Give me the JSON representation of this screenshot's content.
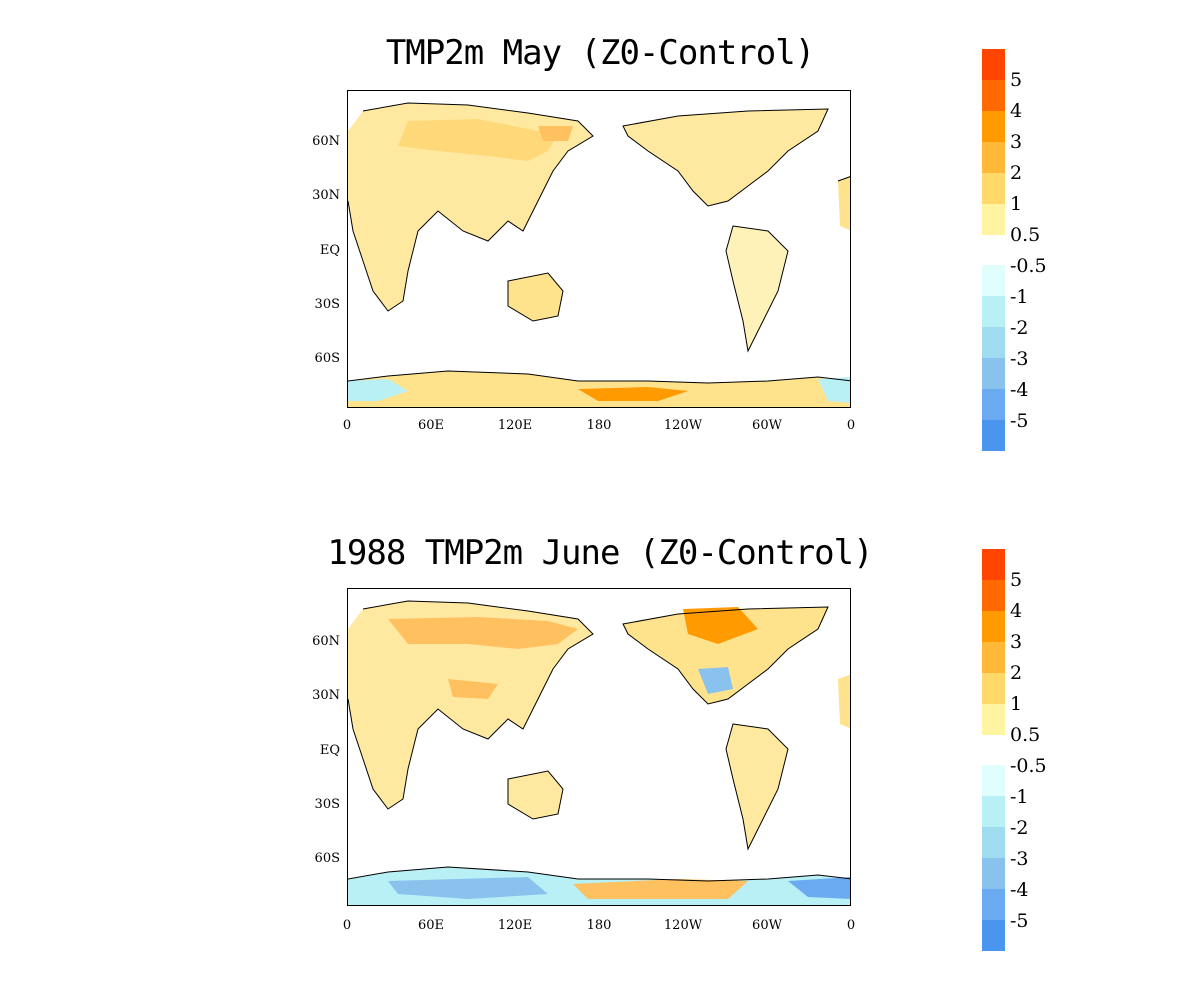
{
  "panels": [
    {
      "title": "TMP2m May (Z0-Control)",
      "lat_labels": [
        "60N",
        "30N",
        "EQ",
        "30S",
        "60S"
      ],
      "lon_labels": [
        "0",
        "60E",
        "120E",
        "180",
        "120W",
        "60W",
        "0"
      ]
    },
    {
      "title": "1988 TMP2m June (Z0-Control)",
      "lat_labels": [
        "60N",
        "30N",
        "EQ",
        "30S",
        "60S"
      ],
      "lon_labels": [
        "0",
        "60E",
        "120E",
        "180",
        "120W",
        "60W",
        "0"
      ]
    }
  ],
  "colorbar": {
    "labels_warm": [
      "5",
      "4",
      "3",
      "2",
      "1",
      "0.5"
    ],
    "labels_cool": [
      "-0.5",
      "-1",
      "-2",
      "-3",
      "-4",
      "-5"
    ],
    "warm_colors": [
      "#ff4500",
      "#ff6a00",
      "#ff9a00",
      "#ffb838",
      "#ffd96a",
      "#fff5a0"
    ],
    "cool_colors": [
      "#e0fefe",
      "#b8f0f6",
      "#a0dcf0",
      "#8ac2ee",
      "#6aaaf0",
      "#4a96ee"
    ]
  }
}
